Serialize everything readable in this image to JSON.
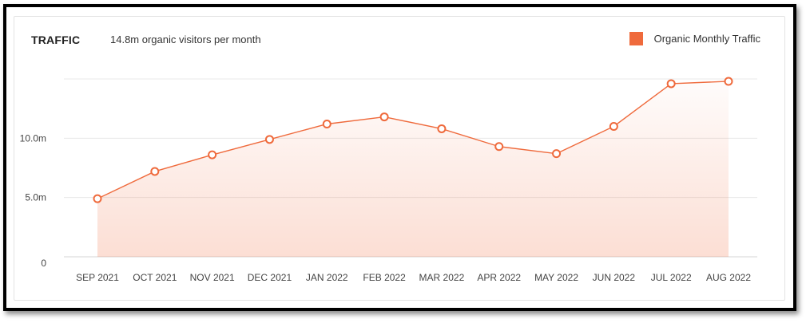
{
  "header": {
    "title": "TRAFFIC",
    "subtitle": "14.8m organic visitors per month"
  },
  "legend": {
    "label": "Organic Monthly Traffic",
    "color": "#ef6a3c"
  },
  "chart_data": {
    "type": "area",
    "title": "TRAFFIC",
    "subtitle": "14.8m organic visitors per month",
    "categories": [
      "SEP 2021",
      "OCT 2021",
      "NOV 2021",
      "DEC 2021",
      "JAN 2022",
      "FEB 2022",
      "MAR 2022",
      "APR 2022",
      "MAY 2022",
      "JUN 2022",
      "JUL 2022",
      "AUG 2022"
    ],
    "series": [
      {
        "name": "Organic Monthly Traffic",
        "values": [
          4.9,
          7.2,
          8.6,
          9.9,
          11.2,
          11.8,
          10.8,
          9.3,
          8.7,
          11.0,
          14.6,
          14.8
        ],
        "color": "#ef6a3c"
      }
    ],
    "yticks": [
      {
        "value": 0,
        "label": "0"
      },
      {
        "value": 5,
        "label": "5.0m"
      },
      {
        "value": 10,
        "label": "10.0m"
      }
    ],
    "ylim": [
      0,
      15
    ],
    "grid": true,
    "legend_position": "top-right"
  }
}
